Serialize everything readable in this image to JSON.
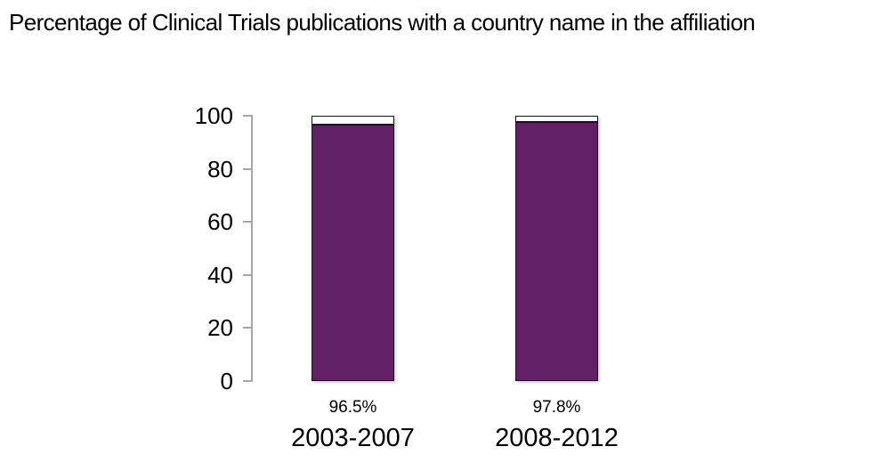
{
  "chart_data": {
    "type": "bar",
    "subtype": "stacked-column",
    "title": "Percentage of Clinical Trials publications with a country name in the affiliation",
    "categories": [
      "2003-2007",
      "2008-2012"
    ],
    "series": [
      {
        "name": "value",
        "values": [
          96.5,
          97.8
        ],
        "color": "#622166"
      },
      {
        "name": "remainder",
        "values": [
          3.5,
          2.2
        ],
        "color": "#ffffff"
      }
    ],
    "value_labels": [
      "96.5%",
      "97.8%"
    ],
    "xlabel": "",
    "ylabel": "",
    "ylim": [
      0,
      100
    ],
    "yticks": [
      0,
      20,
      40,
      60,
      80,
      100
    ],
    "grid": false,
    "legend": "none",
    "colors": {
      "bar_fill": "#622166",
      "bar_remainder_fill": "#ffffff",
      "bar_border": "#151515",
      "axis": "#a6a6a6",
      "text": "#000000",
      "background": "#ffffff"
    }
  }
}
